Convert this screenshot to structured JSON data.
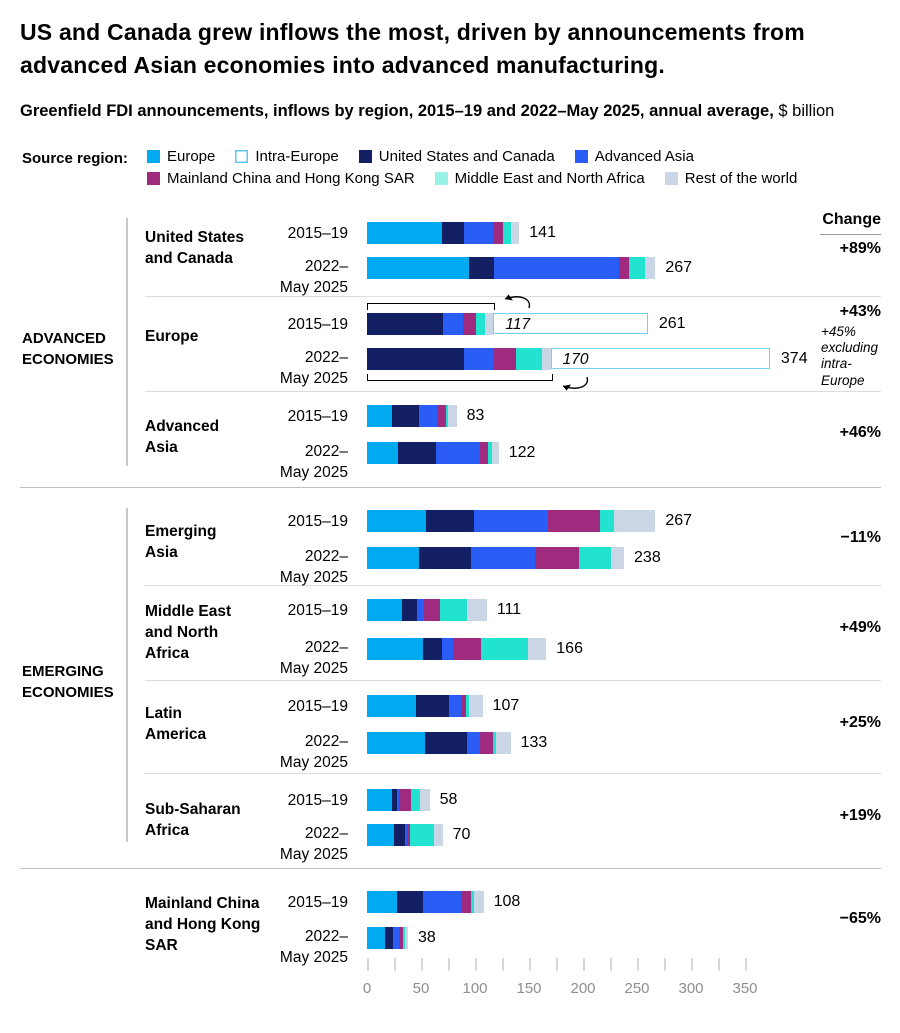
{
  "title": "US and Canada grew inflows the most, driven by announcements from advanced Asian economies into advanced manufacturing.",
  "subtitle": {
    "bold": "Greenfield FDI announcements, inflows by region, 2015–19 and 2022–May 2025, annual average,",
    "regular": " $ billion"
  },
  "header": {
    "change_label": "Change"
  },
  "legend": {
    "label": "Source region:",
    "rows": [
      [
        {
          "id": "europe",
          "label": "Europe",
          "color": "#00A9F0"
        },
        {
          "id": "intra_europe",
          "label": "Intra-Europe",
          "color": "#FFFFFF",
          "border": "#5FC8F0"
        },
        {
          "id": "us_canada",
          "label": "United States and Canada",
          "color": "#121F63"
        },
        {
          "id": "advanced_asia",
          "label": "Advanced Asia",
          "color": "#2A5CF6"
        }
      ],
      [
        {
          "id": "china",
          "label": "Mainland China and Hong Kong SAR",
          "color": "#9E2B7D"
        },
        {
          "id": "mena",
          "label": "Middle East and North Africa",
          "color": "#99F1E7"
        },
        {
          "id": "rest",
          "label": "Rest of the world",
          "color": "#CAD6E6"
        }
      ]
    ]
  },
  "colors": {
    "europe": "#00A9F0",
    "us_canada": "#121F63",
    "advanced_asia": "#2A5CF6",
    "china": "#9E2B7D",
    "mena": "#22E3CF",
    "rest": "#CAD6E6",
    "intra_europe_fill": "#FFFFFF",
    "intra_europe_border": "#74CFF2"
  },
  "chart_data": {
    "type": "bar",
    "orientation": "horizontal-stacked",
    "unit": "$ billion, annual average",
    "axis": {
      "min": 0,
      "max": 350,
      "minor_step": 25,
      "label_step": 50,
      "tick_labels": [
        0,
        50,
        100,
        150,
        200,
        250,
        300,
        350
      ]
    },
    "segment_order": [
      "europe",
      "us_canada",
      "advanced_asia",
      "china",
      "mena",
      "rest"
    ],
    "groups": [
      {
        "name_lines": [
          "ADVANCED",
          "ECONOMIES"
        ],
        "regions": [
          {
            "id": "usc",
            "label_lines": [
              "United States",
              "and Canada"
            ],
            "change": "+89%",
            "rows": [
              {
                "period_lines": [
                  "2015–19"
                ],
                "total": 141,
                "segments": {
                  "europe": 69,
                  "us_canada": 21,
                  "advanced_asia": 27,
                  "china": 9,
                  "mena": 7,
                  "rest": 8
                }
              },
              {
                "period_lines": [
                  "2022–",
                  "May 2025"
                ],
                "total": 267,
                "segments": {
                  "europe": 94,
                  "us_canada": 24,
                  "advanced_asia": 115,
                  "china": 10,
                  "mena": 14,
                  "rest": 10
                }
              }
            ]
          },
          {
            "id": "europe",
            "label_lines": [
              "Europe"
            ],
            "change": "+43%",
            "change_note_lines": [
              "+45%",
              "excluding",
              "intra-",
              "Europe"
            ],
            "rows": [
              {
                "period_lines": [
                  "2015–19"
                ],
                "total": 261,
                "intra_europe": 144,
                "excl_intra_label": "117",
                "segments": {
                  "us_canada": 70,
                  "advanced_asia": 19,
                  "china": 12,
                  "mena": 8,
                  "rest": 8
                }
              },
              {
                "period_lines": [
                  "2022–",
                  "May 2025"
                ],
                "total": 374,
                "intra_europe": 204,
                "excl_intra_label": "170",
                "segments": {
                  "us_canada": 90,
                  "advanced_asia": 28,
                  "china": 20,
                  "mena": 24,
                  "rest": 8
                }
              }
            ]
          },
          {
            "id": "adv_asia",
            "label_lines": [
              "Advanced",
              "Asia"
            ],
            "change": "+46%",
            "rows": [
              {
                "period_lines": [
                  "2015–19"
                ],
                "total": 83,
                "segments": {
                  "europe": 23,
                  "us_canada": 25,
                  "advanced_asia": 18,
                  "china": 7,
                  "mena": 2,
                  "rest": 8
                }
              },
              {
                "period_lines": [
                  "2022–",
                  "May 2025"
                ],
                "total": 122,
                "segments": {
                  "europe": 29,
                  "us_canada": 35,
                  "advanced_asia": 41,
                  "china": 7,
                  "mena": 4,
                  "rest": 6
                }
              }
            ]
          }
        ]
      },
      {
        "name_lines": [
          "EMERGING",
          "ECONOMIES"
        ],
        "regions": [
          {
            "id": "em_asia",
            "label_lines": [
              "Emerging",
              "Asia"
            ],
            "change": "−11%",
            "rows": [
              {
                "period_lines": [
                  "2015–19"
                ],
                "total": 267,
                "segments": {
                  "europe": 55,
                  "us_canada": 44,
                  "advanced_asia": 69,
                  "china": 48,
                  "mena": 13,
                  "rest": 38
                }
              },
              {
                "period_lines": [
                  "2022–",
                  "May 2025"
                ],
                "total": 238,
                "segments": {
                  "europe": 48,
                  "us_canada": 48,
                  "advanced_asia": 60,
                  "china": 40,
                  "mena": 30,
                  "rest": 12
                }
              }
            ]
          },
          {
            "id": "mena",
            "label_lines": [
              "Middle East",
              "and North",
              "Africa"
            ],
            "change": "+49%",
            "rows": [
              {
                "period_lines": [
                  "2015–19"
                ],
                "total": 111,
                "segments": {
                  "europe": 32,
                  "us_canada": 14,
                  "advanced_asia": 7,
                  "china": 15,
                  "mena": 25,
                  "rest": 18
                }
              },
              {
                "period_lines": [
                  "2022–",
                  "May 2025"
                ],
                "total": 166,
                "segments": {
                  "europe": 52,
                  "us_canada": 17,
                  "advanced_asia": 11,
                  "china": 26,
                  "mena": 43,
                  "rest": 17
                }
              }
            ]
          },
          {
            "id": "latam",
            "label_lines": [
              "Latin",
              "America"
            ],
            "change": "+25%",
            "rows": [
              {
                "period_lines": [
                  "2015–19"
                ],
                "total": 107,
                "segments": {
                  "europe": 45,
                  "us_canada": 31,
                  "advanced_asia": 11,
                  "china": 5,
                  "mena": 2,
                  "rest": 13
                }
              },
              {
                "period_lines": [
                  "2022–",
                  "May 2025"
                ],
                "total": 133,
                "segments": {
                  "europe": 54,
                  "us_canada": 39,
                  "advanced_asia": 12,
                  "china": 12,
                  "mena": 2,
                  "rest": 14
                }
              }
            ]
          },
          {
            "id": "ssa",
            "label_lines": [
              "Sub-Saharan",
              "Africa"
            ],
            "change": "+19%",
            "rows": [
              {
                "period_lines": [
                  "2015–19"
                ],
                "total": 58,
                "segments": {
                  "europe": 23,
                  "us_canada": 5,
                  "advanced_asia": 2,
                  "china": 11,
                  "mena": 8,
                  "rest": 9
                }
              },
              {
                "period_lines": [
                  "2022–",
                  "May 2025"
                ],
                "total": 70,
                "segments": {
                  "europe": 25,
                  "us_canada": 10,
                  "advanced_asia": 2,
                  "china": 3,
                  "mena": 22,
                  "rest": 8
                }
              }
            ]
          }
        ]
      },
      {
        "name_lines": [],
        "regions": [
          {
            "id": "china",
            "label_lines": [
              "Mainland China",
              "and Hong Kong",
              "SAR"
            ],
            "change": "−65%",
            "rows": [
              {
                "period_lines": [
                  "2015–19"
                ],
                "total": 108,
                "segments": {
                  "europe": 28,
                  "us_canada": 24,
                  "advanced_asia": 35,
                  "china": 9,
                  "mena": 3,
                  "rest": 9
                }
              },
              {
                "period_lines": [
                  "2022–",
                  "May 2025"
                ],
                "total": 38,
                "segments": {
                  "europe": 17,
                  "us_canada": 7,
                  "advanced_asia": 6,
                  "china": 3,
                  "mena": 2,
                  "rest": 3
                }
              }
            ]
          }
        ]
      }
    ]
  }
}
